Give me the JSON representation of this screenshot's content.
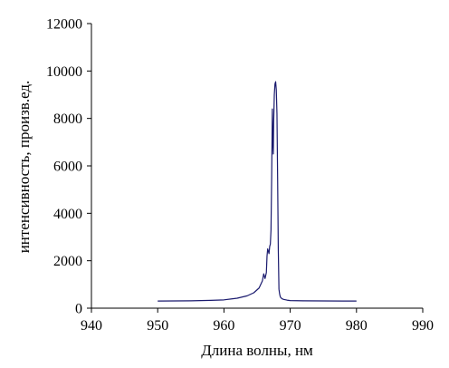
{
  "chart_data": {
    "type": "line",
    "xlabel": "Длина волны, нм",
    "ylabel": "интенсивность, произв.ед.",
    "xlim": [
      940,
      990
    ],
    "ylim": [
      0,
      12000
    ],
    "xticks": [
      940,
      950,
      960,
      970,
      980,
      990
    ],
    "yticks": [
      0,
      2000,
      4000,
      6000,
      8000,
      10000,
      12000
    ],
    "xtick_labels": [
      "940",
      "950",
      "960",
      "970",
      "980",
      "990"
    ],
    "ytick_labels": [
      "0",
      "2000",
      "4000",
      "6000",
      "8000",
      "10000",
      "12000"
    ],
    "grid": false,
    "series_color": "#1a1a6e",
    "series": [
      {
        "x": [
          950,
          955,
          958,
          960,
          962,
          963.5,
          964.5,
          965.3,
          965.8,
          966.0,
          966.2,
          966.4,
          966.5,
          966.6,
          966.8,
          966.9,
          967.0,
          967.1,
          967.2,
          967.3,
          967.35,
          967.45,
          967.5,
          967.6,
          967.7,
          967.8,
          967.9,
          968.0,
          968.1,
          968.2,
          968.3,
          968.4,
          968.5,
          968.6,
          968.75,
          969.0,
          969.5,
          970,
          972,
          975,
          978,
          980
        ],
        "y": [
          300,
          310,
          330,
          350,
          420,
          520,
          650,
          850,
          1150,
          1450,
          1250,
          1500,
          2200,
          2500,
          2300,
          2600,
          2700,
          3300,
          5500,
          8400,
          7200,
          6500,
          7800,
          9000,
          9450,
          9550,
          9200,
          8200,
          5500,
          2500,
          800,
          600,
          480,
          440,
          400,
          370,
          340,
          320,
          310,
          305,
          300,
          300
        ]
      }
    ]
  }
}
